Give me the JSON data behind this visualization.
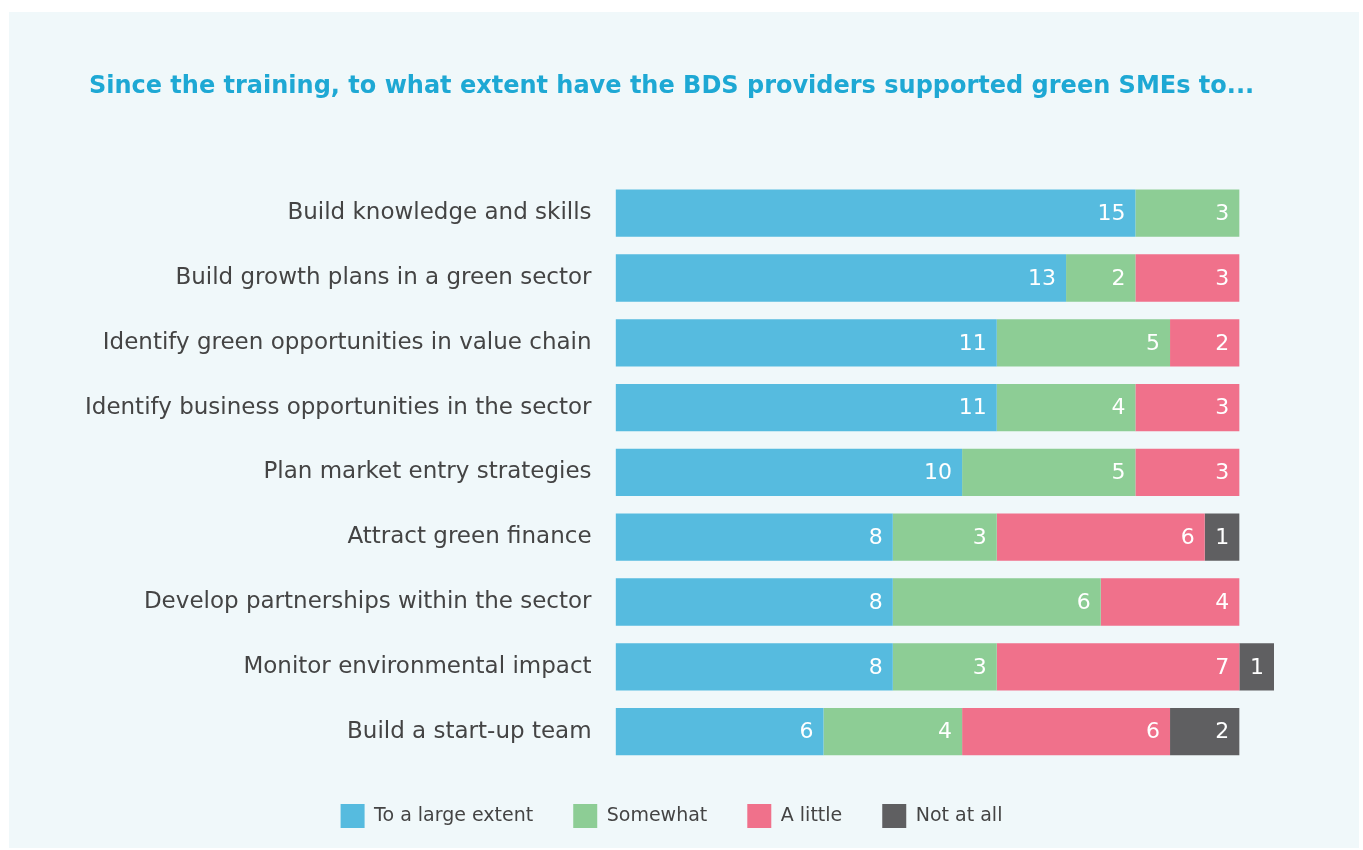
{
  "chart_data": {
    "type": "bar",
    "orientation": "horizontal",
    "stacked": true,
    "title": "Since the training, to what extent have the BDS providers supported green SMEs to...",
    "categories": [
      "Build knowledge and skills",
      "Build growth plans in a green sector",
      "Identify green opportunities in value chain",
      "Identify business opportunities in the sector",
      "Plan market entry strategies",
      "Attract green finance",
      "Develop partnerships within the sector",
      "Monitor environmental impact",
      "Build a start-up team"
    ],
    "series": [
      {
        "name": "To a large extent",
        "color": "#56bbdf",
        "values": [
          15,
          13,
          11,
          11,
          10,
          8,
          8,
          8,
          6
        ]
      },
      {
        "name": "Somewhat",
        "color": "#8dcd95",
        "values": [
          3,
          2,
          5,
          4,
          5,
          3,
          6,
          3,
          4
        ]
      },
      {
        "name": "A little",
        "color": "#f0718b",
        "values": [
          null,
          3,
          2,
          3,
          3,
          6,
          4,
          7,
          6
        ]
      },
      {
        "name": "Not at all",
        "color": "#5f5f61",
        "values": [
          null,
          null,
          null,
          null,
          null,
          1,
          null,
          1,
          2
        ]
      }
    ],
    "data_labels": true,
    "legend": "bottom"
  }
}
